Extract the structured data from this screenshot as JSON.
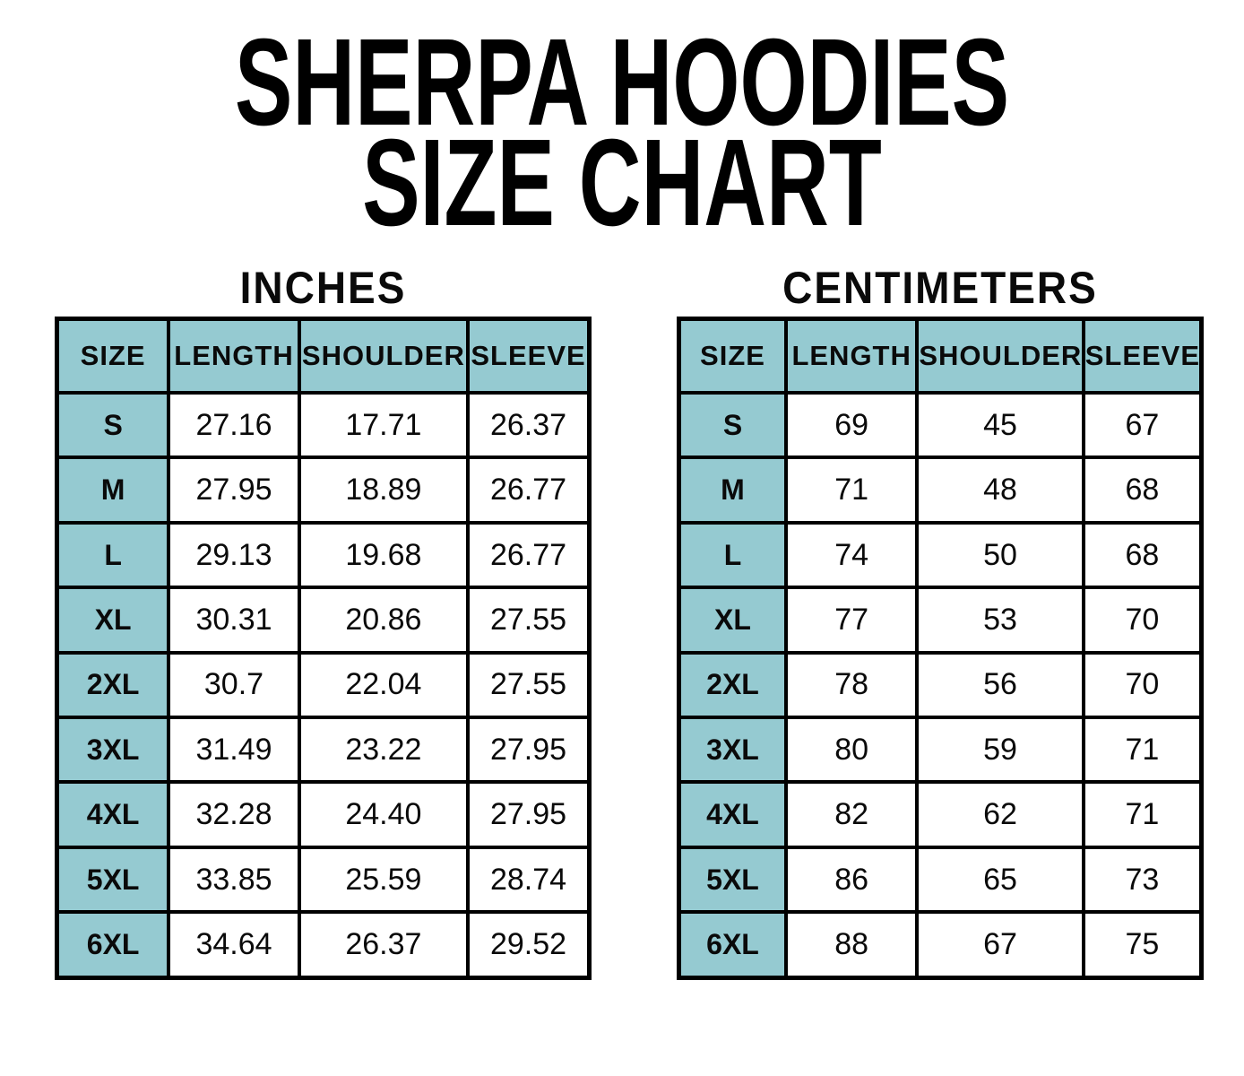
{
  "title": {
    "line1": "SHERPA HOODIES",
    "line2": "SIZE CHART"
  },
  "colors": {
    "header_bg": "#95CAD1",
    "border": "#000000",
    "text": "#0a0a0a",
    "background": "#ffffff"
  },
  "tables": [
    {
      "heading": "INCHES",
      "columns": [
        "SIZE",
        "LENGTH",
        "SHOULDER",
        "SLEEVE"
      ],
      "rows": [
        {
          "size": "S",
          "values": [
            "27.16",
            "17.71",
            "26.37"
          ]
        },
        {
          "size": "M",
          "values": [
            "27.95",
            "18.89",
            "26.77"
          ]
        },
        {
          "size": "L",
          "values": [
            "29.13",
            "19.68",
            "26.77"
          ]
        },
        {
          "size": "XL",
          "values": [
            "30.31",
            "20.86",
            "27.55"
          ]
        },
        {
          "size": "2XL",
          "values": [
            "30.7",
            "22.04",
            "27.55"
          ]
        },
        {
          "size": "3XL",
          "values": [
            "31.49",
            "23.22",
            "27.95"
          ]
        },
        {
          "size": "4XL",
          "values": [
            "32.28",
            "24.40",
            "27.95"
          ]
        },
        {
          "size": "5XL",
          "values": [
            "33.85",
            "25.59",
            "28.74"
          ]
        },
        {
          "size": "6XL",
          "values": [
            "34.64",
            "26.37",
            "29.52"
          ]
        }
      ]
    },
    {
      "heading": "CENTIMETERS",
      "columns": [
        "SIZE",
        "LENGTH",
        "SHOULDER",
        "SLEEVE"
      ],
      "rows": [
        {
          "size": "S",
          "values": [
            "69",
            "45",
            "67"
          ]
        },
        {
          "size": "M",
          "values": [
            "71",
            "48",
            "68"
          ]
        },
        {
          "size": "L",
          "values": [
            "74",
            "50",
            "68"
          ]
        },
        {
          "size": "XL",
          "values": [
            "77",
            "53",
            "70"
          ]
        },
        {
          "size": "2XL",
          "values": [
            "78",
            "56",
            "70"
          ]
        },
        {
          "size": "3XL",
          "values": [
            "80",
            "59",
            "71"
          ]
        },
        {
          "size": "4XL",
          "values": [
            "82",
            "62",
            "71"
          ]
        },
        {
          "size": "5XL",
          "values": [
            "86",
            "65",
            "73"
          ]
        },
        {
          "size": "6XL",
          "values": [
            "88",
            "67",
            "75"
          ]
        }
      ]
    }
  ]
}
